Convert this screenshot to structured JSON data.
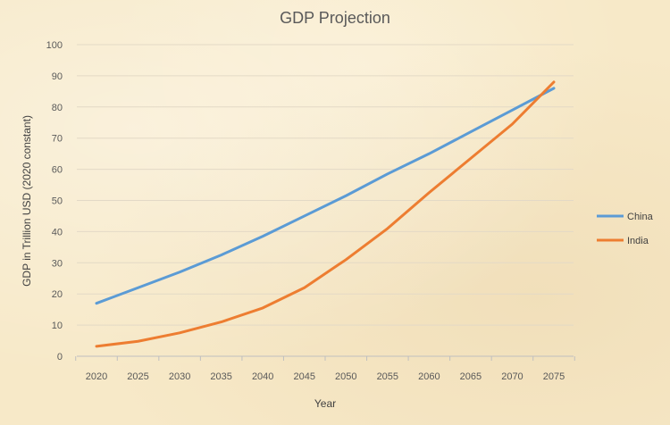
{
  "chart_data": {
    "type": "line",
    "title": "GDP Projection",
    "xlabel": "Year",
    "ylabel": "GDP  in Trillion USD  (2020 constant)",
    "x": [
      "2020",
      "2025",
      "2030",
      "2035",
      "2040",
      "2045",
      "2050",
      "2055",
      "2060",
      "2065",
      "2070",
      "2075"
    ],
    "ylim": [
      0,
      100
    ],
    "yticks": [
      "0",
      "10",
      "20",
      "30",
      "40",
      "50",
      "60",
      "70",
      "80",
      "90",
      "100"
    ],
    "grid": true,
    "legend_position": "right",
    "series": [
      {
        "name": "China",
        "color": "#5b9bd5",
        "values": [
          17,
          22,
          27,
          32.5,
          38.5,
          45,
          51.5,
          58.5,
          65,
          72,
          79,
          86
        ]
      },
      {
        "name": "India",
        "color": "#ed7d31",
        "values": [
          3.2,
          4.8,
          7.5,
          11,
          15.5,
          22,
          31,
          41,
          52.5,
          63.5,
          74.5,
          88
        ]
      }
    ]
  }
}
